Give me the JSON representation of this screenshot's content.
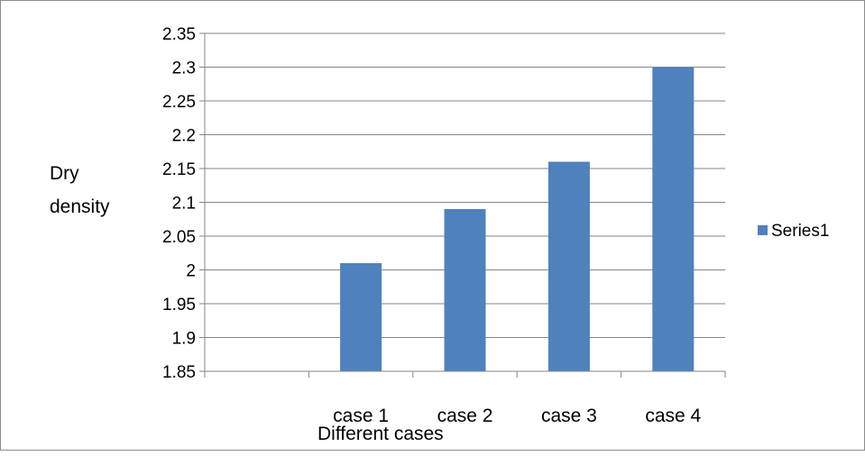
{
  "chart_data": {
    "type": "bar",
    "categories": [
      "",
      "case 1",
      "case 2",
      "case 3",
      "case 4"
    ],
    "series": [
      {
        "name": "Series1",
        "values": [
          null,
          2.01,
          2.09,
          2.16,
          2.3
        ],
        "color": "#4f81bd"
      }
    ],
    "xlabel": "Different cases",
    "ylabel_lines": [
      "Dry",
      "density"
    ],
    "ylim": [
      1.85,
      2.35
    ],
    "yticks": [
      "1.85",
      "1.9",
      "1.95",
      "2",
      "2.05",
      "2.1",
      "2.15",
      "2.2",
      "2.25",
      "2.3",
      "2.35"
    ],
    "grid": true,
    "legend": {
      "placement": "right",
      "entries": [
        "Series1"
      ]
    }
  }
}
